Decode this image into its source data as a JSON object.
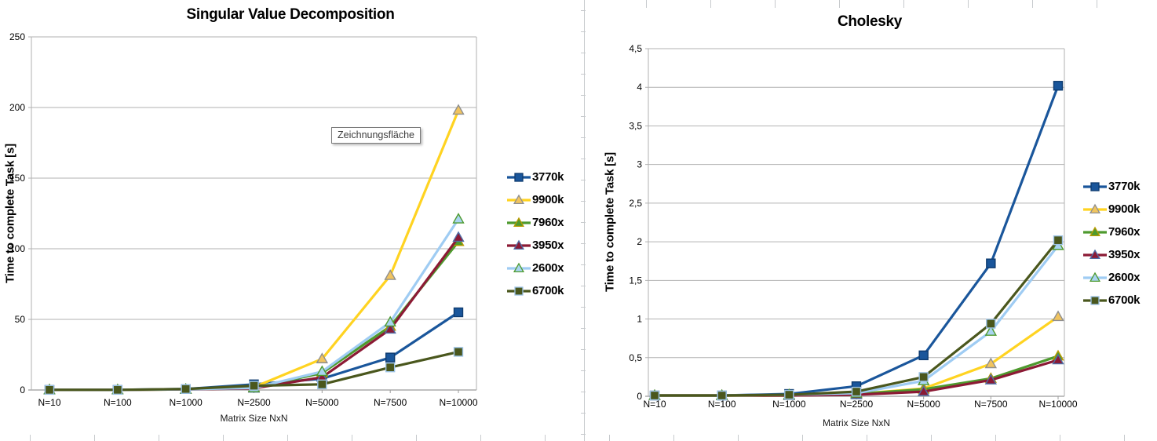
{
  "tooltip": {
    "text": "Zeichnungsfläche"
  },
  "chart_data": [
    {
      "type": "line",
      "title": "Singular Value Decomposition",
      "xlabel": "Matrix Size NxN",
      "ylabel": "Time to complete Task [s]",
      "categories": [
        "N=10",
        "N=100",
        "N=1000",
        "N=2500",
        "N=5000",
        "N=7500",
        "N=10000"
      ],
      "ylim": [
        0,
        250
      ],
      "ytick_step": 50,
      "ytick_labels": [
        "0",
        "50",
        "100",
        "150",
        "200",
        "250"
      ],
      "grid": true,
      "legend_position": "right",
      "series": [
        {
          "name": "3770k",
          "values": [
            0.1,
            0.1,
            0.7,
            4,
            8,
            23,
            55
          ],
          "line_color": "#1A569B",
          "marker": "square",
          "marker_fill": "#1A569B",
          "marker_stroke": "#0E3B6F"
        },
        {
          "name": "9900k",
          "values": [
            0.1,
            0.1,
            0.4,
            2,
            22,
            81,
            198
          ],
          "line_color": "#FFD321",
          "marker": "triangle",
          "marker_fill": "#F1C45F",
          "marker_stroke": "#8F8F8F"
        },
        {
          "name": "7960x",
          "values": [
            0.1,
            0.1,
            0.4,
            1.5,
            12,
            45,
            105
          ],
          "line_color": "#4E9A2E",
          "marker": "triangle",
          "marker_fill": "#4E9A2E",
          "marker_stroke": "#BA9B00"
        },
        {
          "name": "3950x",
          "values": [
            0.1,
            0.1,
            0.4,
            1.2,
            9,
            43,
            108
          ],
          "line_color": "#8C1A35",
          "marker": "triangle",
          "marker_fill": "#8C1A35",
          "marker_stroke": "#4F6DA5"
        },
        {
          "name": "2600x",
          "values": [
            0.1,
            0.1,
            0.5,
            1.5,
            13,
            48,
            121
          ],
          "line_color": "#9FCCF3",
          "marker": "triangle",
          "marker_fill": "#A9D4F1",
          "marker_stroke": "#4E9A2E"
        },
        {
          "name": "6700k",
          "values": [
            0.1,
            0.1,
            0.7,
            3,
            4,
            16,
            27
          ],
          "line_color": "#4A571D",
          "marker": "square",
          "marker_fill": "#4A571D",
          "marker_stroke": "#9DC3E6"
        }
      ]
    },
    {
      "type": "line",
      "title": "Cholesky",
      "xlabel": "Matrix Size NxN",
      "ylabel": "Time to complete Task [s]",
      "categories": [
        "N=10",
        "N=100",
        "N=1000",
        "N=2500",
        "N=5000",
        "N=7500",
        "N=10000"
      ],
      "ylim": [
        0,
        4.5
      ],
      "ytick_step": 0.5,
      "ytick_labels": [
        "0",
        "0,5",
        "1",
        "1,5",
        "2",
        "2,5",
        "3",
        "3,5",
        "4",
        "4,5"
      ],
      "grid": true,
      "legend_position": "right",
      "series": [
        {
          "name": "3770k",
          "values": [
            0.01,
            0.01,
            0.03,
            0.13,
            0.53,
            1.72,
            4.02
          ],
          "line_color": "#1A569B",
          "marker": "square",
          "marker_fill": "#1A569B",
          "marker_stroke": "#0E3B6F"
        },
        {
          "name": "9900k",
          "values": [
            0.01,
            0.01,
            0.01,
            0.03,
            0.1,
            0.42,
            1.03
          ],
          "line_color": "#FFD321",
          "marker": "triangle",
          "marker_fill": "#F1C45F",
          "marker_stroke": "#8F8F8F"
        },
        {
          "name": "7960x",
          "values": [
            0.01,
            0.01,
            0.01,
            0.03,
            0.09,
            0.23,
            0.52
          ],
          "line_color": "#4E9A2E",
          "marker": "triangle",
          "marker_fill": "#4E9A2E",
          "marker_stroke": "#BA9B00"
        },
        {
          "name": "3950x",
          "values": [
            0.01,
            0.01,
            0.01,
            0.02,
            0.06,
            0.21,
            0.47
          ],
          "line_color": "#8C1A35",
          "marker": "triangle",
          "marker_fill": "#8C1A35",
          "marker_stroke": "#4F6DA5"
        },
        {
          "name": "2600x",
          "values": [
            0.01,
            0.01,
            0.02,
            0.04,
            0.2,
            0.84,
            1.95
          ],
          "line_color": "#9FCCF3",
          "marker": "triangle",
          "marker_fill": "#A9D4F1",
          "marker_stroke": "#4E9A2E"
        },
        {
          "name": "6700k",
          "values": [
            0.01,
            0.01,
            0.02,
            0.06,
            0.25,
            0.94,
            2.02
          ],
          "line_color": "#4A571D",
          "marker": "square",
          "marker_fill": "#4A571D",
          "marker_stroke": "#9DC3E6"
        }
      ]
    }
  ]
}
